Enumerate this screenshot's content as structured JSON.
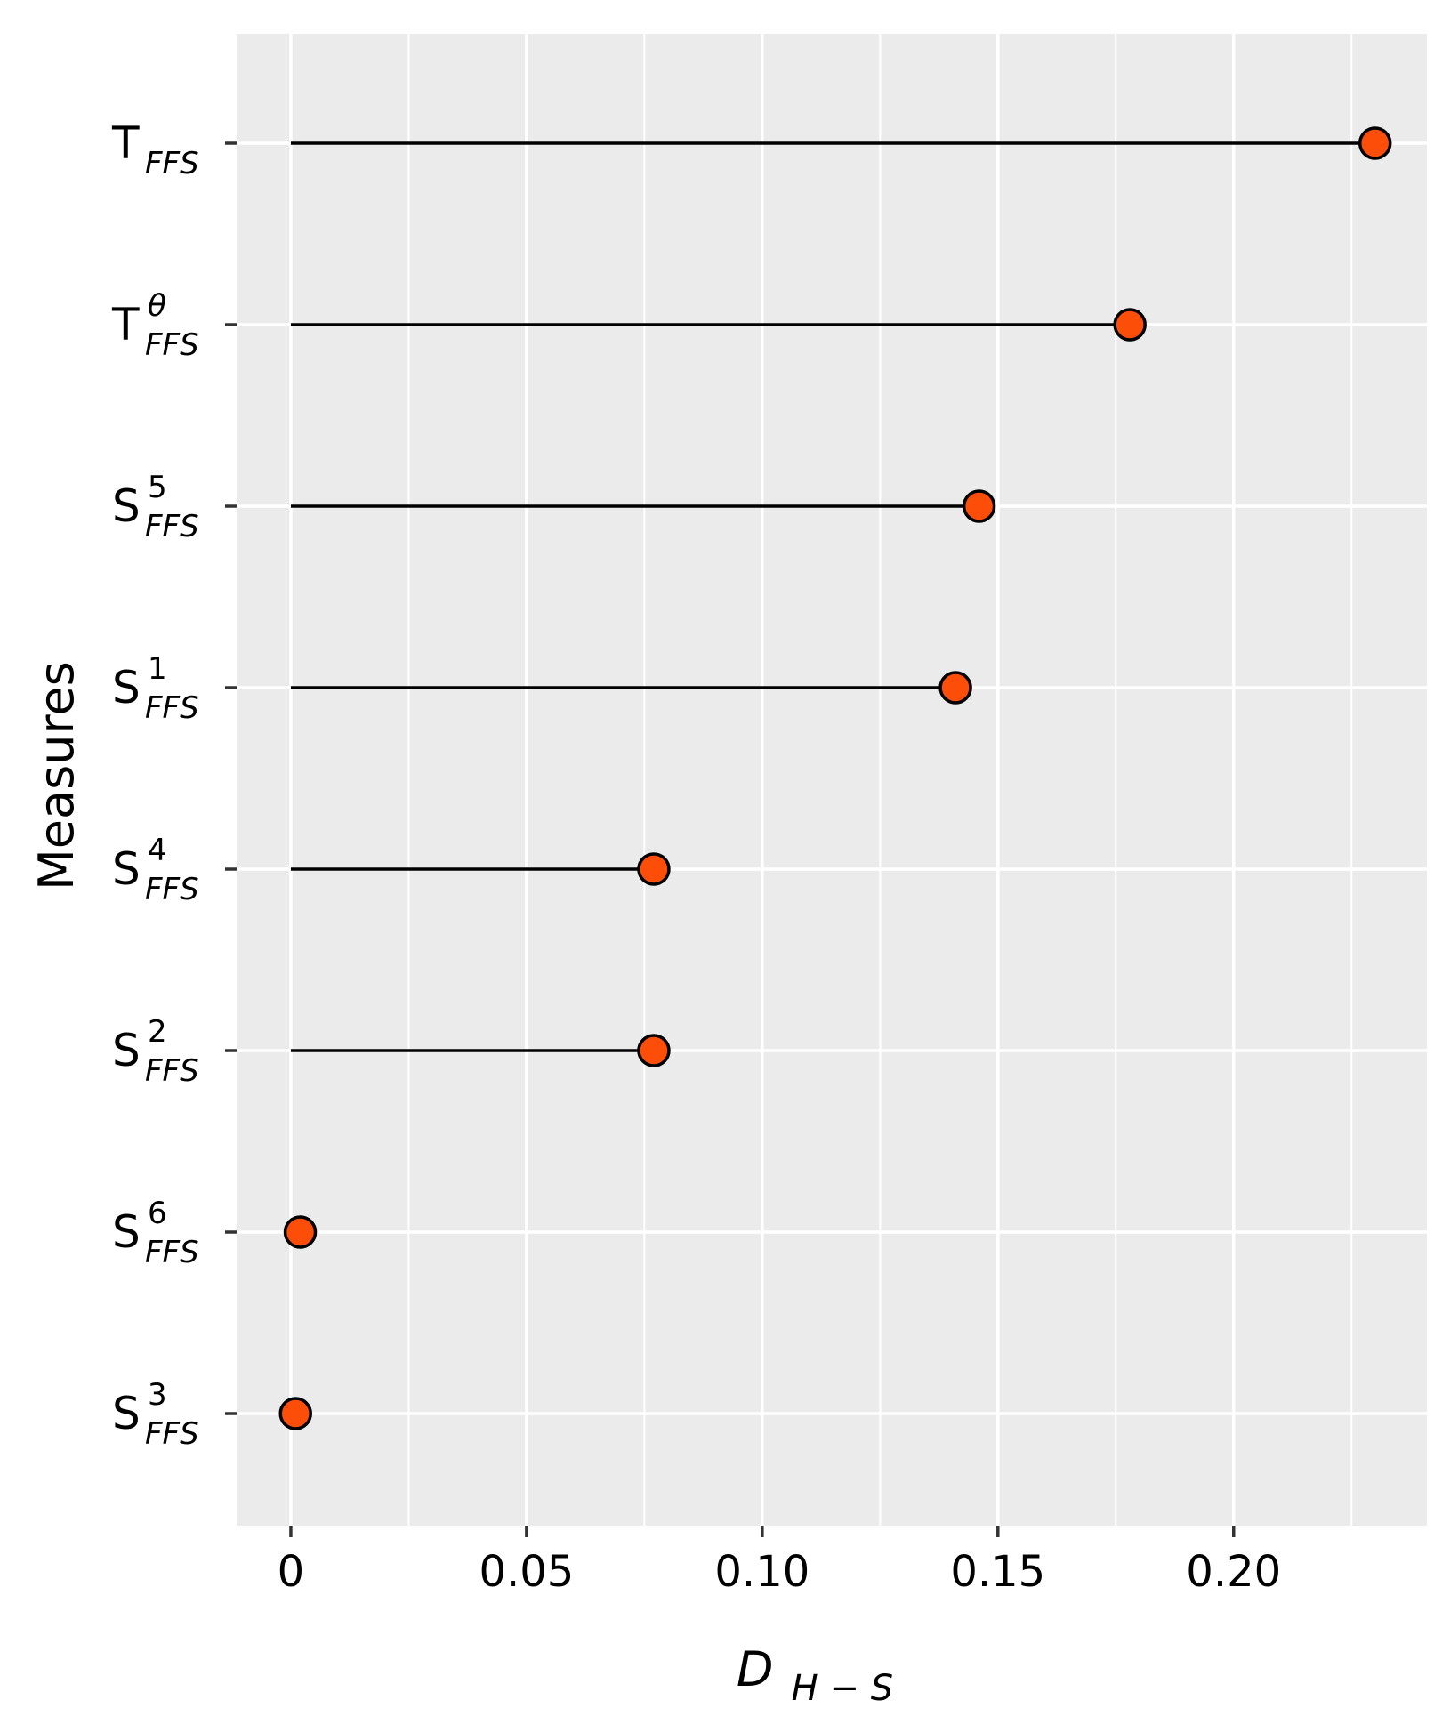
{
  "chart_data": {
    "type": "lollipop",
    "xlabel": {
      "base": "D",
      "sub": "H − S"
    },
    "ylabel": "Measures",
    "xlim": [
      -0.0115,
      0.241
    ],
    "x_ticks": [
      {
        "value": 0,
        "label": "0"
      },
      {
        "value": 0.05,
        "label": "0.05"
      },
      {
        "value": 0.1,
        "label": "0.10"
      },
      {
        "value": 0.15,
        "label": "0.15"
      },
      {
        "value": 0.2,
        "label": "0.20"
      }
    ],
    "minor_grid": [
      0.025,
      0.075,
      0.125,
      0.175,
      0.225
    ],
    "grid": true,
    "categories": [
      {
        "base": "T",
        "sup": "",
        "sub": "FFS",
        "value": 0.23
      },
      {
        "base": "T",
        "sup": "θ",
        "sub": "FFS",
        "value": 0.178
      },
      {
        "base": "S",
        "sup": "5",
        "sub": "FFS",
        "value": 0.146
      },
      {
        "base": "S",
        "sup": "1",
        "sub": "FFS",
        "value": 0.141
      },
      {
        "base": "S",
        "sup": "4",
        "sub": "FFS",
        "value": 0.077
      },
      {
        "base": "S",
        "sup": "2",
        "sub": "FFS",
        "value": 0.077
      },
      {
        "base": "S",
        "sup": "6",
        "sub": "FFS",
        "value": 0.002
      },
      {
        "base": "S",
        "sup": "3",
        "sub": "FFS",
        "value": 0.001
      }
    ],
    "colors": {
      "panel": "#ebebeb",
      "grid": "#ffffff",
      "point_fill": "#fc4e08",
      "point_stroke": "#000000",
      "stem": "#000000",
      "tick": "#333333"
    }
  }
}
